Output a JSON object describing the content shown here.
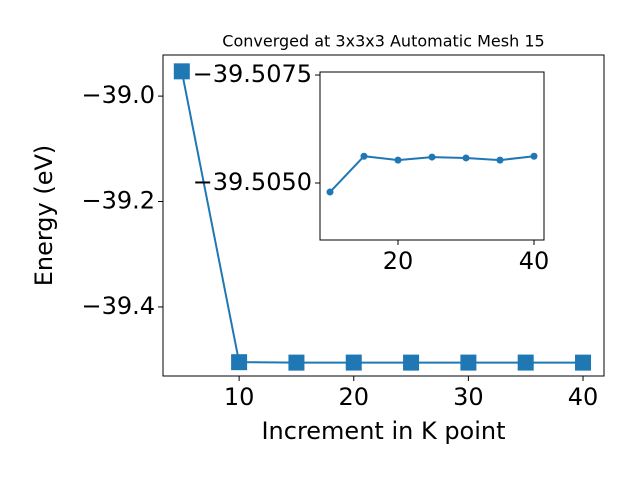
{
  "chart_data": [
    {
      "type": "line",
      "title": "Converged at 3x3x3 Automatic Mesh 15",
      "x_label": "Increment in K point",
      "y_label": "Energy (eV)",
      "x": [
        5,
        10,
        15,
        20,
        25,
        30,
        35,
        40
      ],
      "series": [
        {
          "color": "#1f77b4",
          "marker": "square",
          "values": [
            -38.953,
            -39.50479,
            -39.50562,
            -39.50553,
            -39.5056,
            -39.50558,
            -39.50553,
            -39.50562
          ]
        }
      ],
      "xlim": [
        3.36,
        41.83
      ],
      "xticks": [
        10,
        20,
        30,
        40
      ],
      "ylim": [
        -39.531,
        -38.922
      ],
      "yticks": [
        {
          "value": -39.4,
          "label": "−39.4"
        },
        {
          "value": -39.2,
          "label": "−39.2"
        },
        {
          "value": -39.0,
          "label": "−39.0"
        }
      ]
    },
    {
      "type": "line",
      "x": [
        10,
        15,
        20,
        25,
        30,
        35,
        40
      ],
      "series": [
        {
          "color": "#1f77b4",
          "marker": "circle",
          "values": [
            -39.50479,
            -39.50562,
            -39.50553,
            -39.5056,
            -39.50558,
            -39.50553,
            -39.50562
          ]
        }
      ],
      "xlim": [
        8.53,
        41.47
      ],
      "xticks": [
        20,
        40
      ],
      "ylim": [
        -39.50368,
        -39.50757
      ],
      "yticks": [
        {
          "value": -39.505,
          "label": "−39.5050"
        },
        {
          "value": -39.5075,
          "label": "−39.5075"
        }
      ]
    }
  ]
}
